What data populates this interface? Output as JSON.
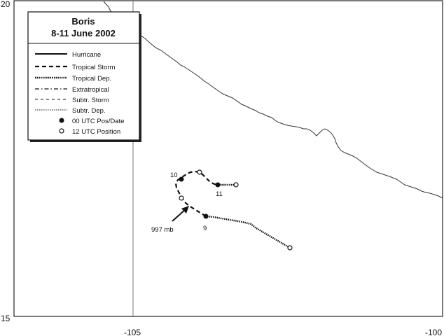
{
  "storm": {
    "name": "Boris",
    "dates": "8-11 June 2002"
  },
  "axes": {
    "lat_labels": [
      "20",
      "15"
    ],
    "lon_labels": [
      "-105",
      "-100"
    ]
  },
  "legend": {
    "items": [
      {
        "label": "Hurricane",
        "style": "solid"
      },
      {
        "label": "Tropical Storm",
        "style": "dashed"
      },
      {
        "label": "Tropical Dep.",
        "style": "dotted-thick"
      },
      {
        "label": "Extratropical",
        "style": "dash-dot"
      },
      {
        "label": "Subtr. Storm",
        "style": "dashed-thin"
      },
      {
        "label": "Subtr. Dep.",
        "style": "dotted-thin"
      },
      {
        "label": "00 UTC Pos/Date",
        "style": "filled-dot"
      },
      {
        "label": "12 UTC Position",
        "style": "open-dot"
      }
    ]
  },
  "track_labels": {
    "day8": "9",
    "day9": "10",
    "day10": "11",
    "pressure": "997 mb"
  },
  "colors": {
    "track": "#111111",
    "coast": "#333333",
    "grid": "#555555"
  }
}
